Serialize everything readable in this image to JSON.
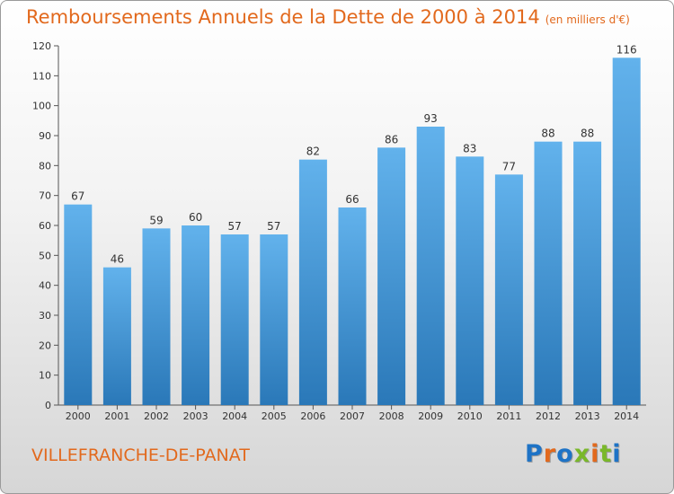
{
  "title": "Remboursements Annuels de la Dette de 2000 à 2014",
  "unit": "(en milliers d'€)",
  "place": "VILLEFRANCHE-DE-PANAT",
  "logo": "Proxiti",
  "colors": {
    "title": "#e2691d",
    "bar_light": "#62b2ec",
    "bar_dark": "#2a78b8",
    "logo_letters": [
      "#1e73c6",
      "#e2691d",
      "#1e73c6",
      "#7ab82a",
      "#e2691d",
      "#7ab82a",
      "#1e73c6"
    ]
  },
  "chart_data": {
    "type": "bar",
    "title": "Remboursements Annuels de la Dette de 2000 à 2014",
    "subtitle": "(en milliers d'€)",
    "categories": [
      "2000",
      "2001",
      "2002",
      "2003",
      "2004",
      "2005",
      "2006",
      "2007",
      "2008",
      "2009",
      "2010",
      "2011",
      "2012",
      "2013",
      "2014"
    ],
    "values": [
      67,
      46,
      59,
      60,
      57,
      57,
      82,
      66,
      86,
      93,
      83,
      77,
      88,
      88,
      116
    ],
    "ylim": [
      0,
      120
    ],
    "yticks": [
      0,
      10,
      20,
      30,
      40,
      50,
      60,
      70,
      80,
      90,
      100,
      110,
      120
    ],
    "grid": false,
    "data_labels": true
  }
}
